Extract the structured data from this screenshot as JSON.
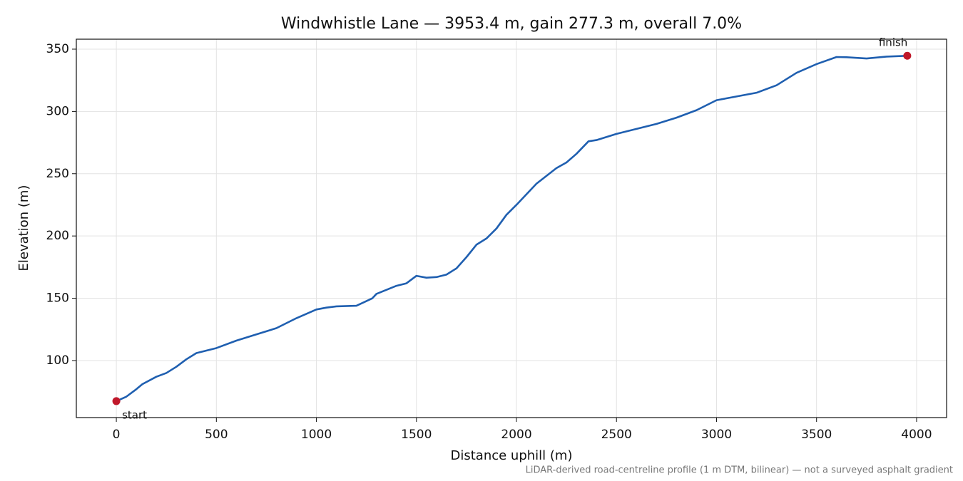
{
  "chart_data": {
    "type": "line",
    "title": "Windwhistle Lane — 3953.4 m, gain 277.3 m, overall 7.0%",
    "x_label": "Distance uphill (m)",
    "y_label": "Elevation (m)",
    "note": "LiDAR-derived road-centreline profile (1 m DTM, bilinear) — not a surveyed asphalt gradient",
    "x": [
      0,
      50,
      100,
      130,
      200,
      250,
      300,
      350,
      400,
      450,
      500,
      600,
      700,
      800,
      900,
      1000,
      1050,
      1100,
      1200,
      1280,
      1300,
      1400,
      1450,
      1500,
      1550,
      1600,
      1650,
      1700,
      1750,
      1800,
      1850,
      1900,
      1950,
      2000,
      2100,
      2200,
      2250,
      2300,
      2360,
      2400,
      2500,
      2600,
      2700,
      2800,
      2900,
      2950,
      3000,
      3100,
      3200,
      3300,
      3400,
      3500,
      3600,
      3650,
      3750,
      3850,
      3953.4
    ],
    "series": [
      {
        "name": "Elevation",
        "color": "#1f5fb0",
        "values": [
          67.4,
          71,
          77,
          81,
          87,
          90,
          95,
          101,
          106,
          108,
          110,
          116,
          121,
          126,
          134,
          141,
          142.5,
          143.5,
          144,
          150,
          153.5,
          160,
          162,
          168,
          166.5,
          167,
          169,
          174,
          183,
          193,
          198,
          206,
          217,
          225,
          242,
          254.5,
          259,
          266,
          276,
          277,
          282,
          286,
          290,
          295,
          301,
          305,
          309,
          312,
          315,
          321,
          331,
          338,
          343.7,
          343.5,
          342.5,
          344,
          344.7
        ]
      }
    ],
    "endpoint_labels": [
      "start",
      "finish"
    ],
    "marker_color": "#c0182a",
    "xlim": [
      -200,
      4150
    ],
    "ylim": [
      54.2,
      358
    ],
    "xticks": [
      0,
      500,
      1000,
      1500,
      2000,
      2500,
      3000,
      3500,
      4000
    ],
    "yticks": [
      100,
      150,
      200,
      250,
      300,
      350
    ],
    "grid": true
  }
}
